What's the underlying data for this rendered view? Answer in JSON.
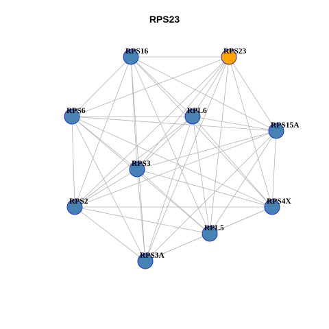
{
  "title": "RPS23",
  "colors": {
    "node_fill": "#4682b4",
    "node_stroke": "#1f2fd0",
    "highlight_fill": "#ffa500",
    "edge": "#b3b3b3"
  },
  "nodes": [
    {
      "id": "RPS23",
      "label": "RPS23",
      "highlight": true
    },
    {
      "id": "RPS16",
      "label": "RPS16",
      "highlight": false
    },
    {
      "id": "RPS6",
      "label": "RPS6",
      "highlight": false
    },
    {
      "id": "RPL6",
      "label": "RPL6",
      "highlight": false
    },
    {
      "id": "RPS15A",
      "label": "RPS15A",
      "highlight": false
    },
    {
      "id": "RPS3",
      "label": "RPS3",
      "highlight": false
    },
    {
      "id": "RPS2",
      "label": "RPS2",
      "highlight": false
    },
    {
      "id": "RPS4X",
      "label": "RPS4X",
      "highlight": false
    },
    {
      "id": "RPL5",
      "label": "RPL5",
      "highlight": false
    },
    {
      "id": "RPS3A",
      "label": "RPS3A",
      "highlight": false
    }
  ],
  "edges": [
    [
      "RPS16",
      "RPS23"
    ],
    [
      "RPS16",
      "RPS6"
    ],
    [
      "RPS16",
      "RPL6"
    ],
    [
      "RPS16",
      "RPS15A"
    ],
    [
      "RPS16",
      "RPS3"
    ],
    [
      "RPS16",
      "RPS2"
    ],
    [
      "RPS16",
      "RPS4X"
    ],
    [
      "RPS16",
      "RPL5"
    ],
    [
      "RPS16",
      "RPS3A"
    ],
    [
      "RPS23",
      "RPS6"
    ],
    [
      "RPS23",
      "RPL6"
    ],
    [
      "RPS23",
      "RPS15A"
    ],
    [
      "RPS23",
      "RPS3"
    ],
    [
      "RPS23",
      "RPS2"
    ],
    [
      "RPS23",
      "RPS4X"
    ],
    [
      "RPS23",
      "RPL5"
    ],
    [
      "RPS23",
      "RPS3A"
    ],
    [
      "RPS6",
      "RPL6"
    ],
    [
      "RPS6",
      "RPS15A"
    ],
    [
      "RPS6",
      "RPS3"
    ],
    [
      "RPS6",
      "RPS2"
    ],
    [
      "RPS6",
      "RPS4X"
    ],
    [
      "RPS6",
      "RPL5"
    ],
    [
      "RPS6",
      "RPS3A"
    ],
    [
      "RPL6",
      "RPS15A"
    ],
    [
      "RPL6",
      "RPS3"
    ],
    [
      "RPL6",
      "RPS2"
    ],
    [
      "RPL6",
      "RPS4X"
    ],
    [
      "RPL6",
      "RPL5"
    ],
    [
      "RPL6",
      "RPS3A"
    ],
    [
      "RPS15A",
      "RPS3"
    ],
    [
      "RPS15A",
      "RPS2"
    ],
    [
      "RPS15A",
      "RPS4X"
    ],
    [
      "RPS15A",
      "RPL5"
    ],
    [
      "RPS15A",
      "RPS3A"
    ],
    [
      "RPS3",
      "RPS2"
    ],
    [
      "RPS3",
      "RPS4X"
    ],
    [
      "RPS3",
      "RPL5"
    ],
    [
      "RPS3",
      "RPS3A"
    ],
    [
      "RPS2",
      "RPS4X"
    ],
    [
      "RPS2",
      "RPL5"
    ],
    [
      "RPS2",
      "RPS3A"
    ],
    [
      "RPS4X",
      "RPL5"
    ],
    [
      "RPS4X",
      "RPS3A"
    ],
    [
      "RPL5",
      "RPS3A"
    ]
  ]
}
